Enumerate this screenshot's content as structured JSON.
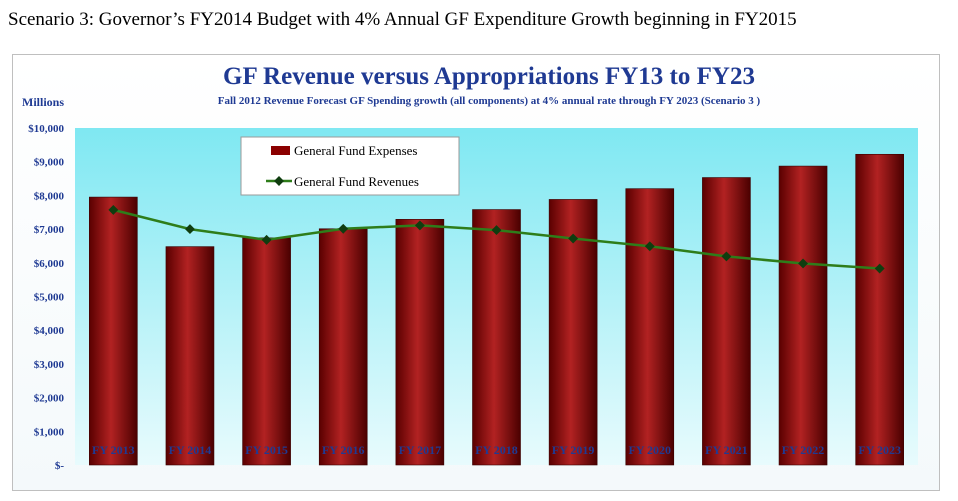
{
  "caption": "Scenario 3: Governor’s FY2014 Budget with 4% Annual GF Expenditure Growth beginning in FY2015",
  "colors": {
    "title": "#1f3a93",
    "bar": "#8b0000",
    "bar_highlight": "#b22222",
    "line": "#2e7d1a",
    "marker": "#0f3d0f",
    "plot_top": "#7fe8f2",
    "plot_bottom": "#e8fbfd"
  },
  "chart_data": {
    "type": "bar",
    "title": "GF Revenue versus Appropriations FY13 to FY23",
    "subtitle": "Fall 2012 Revenue Forecast  GF Spending growth (all components) at 4%  annual rate through FY 2023  (Scenario 3 )",
    "ylabel": "Millions",
    "xlabel": "",
    "ylim": [
      0,
      10000
    ],
    "y_ticks": [
      0,
      1000,
      2000,
      3000,
      4000,
      5000,
      6000,
      7000,
      8000,
      9000,
      10000
    ],
    "y_tick_labels": [
      "$-",
      "$1,000",
      "$2,000",
      "$3,000",
      "$4,000",
      "$5,000",
      "$6,000",
      "$7,000",
      "$8,000",
      "$9,000",
      "$10,000"
    ],
    "categories": [
      "FY 2013",
      "FY 2014",
      "FY 2015",
      "FY 2016",
      "FY 2017",
      "FY 2018",
      "FY 2019",
      "FY 2020",
      "FY 2021",
      "FY 2022",
      "FY 2023"
    ],
    "grid": false,
    "legend_position": "top-left",
    "series": [
      {
        "name": "General Fund Expenses",
        "type": "bar",
        "values": [
          7950,
          6480,
          6740,
          7010,
          7290,
          7580,
          7880,
          8200,
          8530,
          8870,
          9220
        ]
      },
      {
        "name": "General Fund Revenues",
        "type": "line",
        "values": [
          7570,
          7000,
          6680,
          7010,
          7110,
          6970,
          6720,
          6490,
          6190,
          5980,
          5830
        ]
      }
    ]
  }
}
